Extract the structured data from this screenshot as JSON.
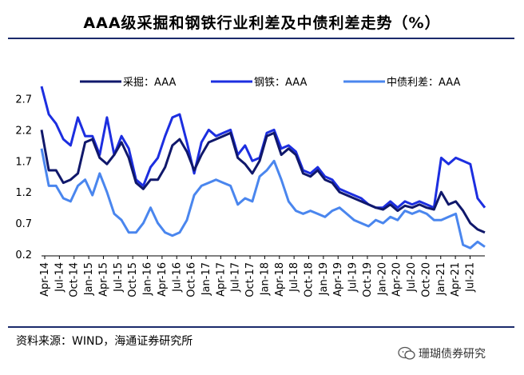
{
  "title": "AAA级采掘和钢铁行业利差及中债利差走势（%）",
  "source": "资料来源：WIND，海通证券研究所",
  "watermark": "珊瑚债券研究",
  "colors": {
    "mining": "#10186b",
    "steel": "#1c2ee0",
    "cbond": "#4a86ee",
    "rule": "#1b2a6b"
  },
  "chart_data": {
    "type": "line",
    "ylim": [
      0.2,
      2.9
    ],
    "yticks": [
      "2.7",
      "2.2",
      "1.7",
      "1.2",
      "0.7",
      "0.2"
    ],
    "ytick_values": [
      2.7,
      2.2,
      1.7,
      1.2,
      0.7,
      0.2
    ],
    "xticks": [
      "Apr-14",
      "Jul-14",
      "Oct-14",
      "Jan-15",
      "Apr-15",
      "Jul-15",
      "Oct-15",
      "Jan-16",
      "Apr-16",
      "Jul-16",
      "Oct-16",
      "Jan-17",
      "Apr-17",
      "Jul-17",
      "Oct-17",
      "Jan-18",
      "Apr-18",
      "Jul-18",
      "Oct-18",
      "Jan-19",
      "Apr-19",
      "Jul-19",
      "Oct-19",
      "Jan-20",
      "Apr-20",
      "Jul-20",
      "Oct-20",
      "Jan-21",
      "Apr-21",
      "Jul-21"
    ],
    "series": [
      {
        "name": "采掘：AAA",
        "key": "mining",
        "values": [
          2.2,
          1.55,
          1.55,
          1.35,
          1.4,
          1.5,
          2.0,
          2.05,
          1.75,
          1.65,
          1.8,
          2.0,
          1.75,
          1.35,
          1.25,
          1.4,
          1.4,
          1.6,
          1.95,
          2.05,
          1.85,
          1.55,
          1.8,
          2.0,
          2.05,
          2.1,
          2.15,
          1.75,
          1.65,
          1.5,
          1.7,
          2.1,
          2.15,
          1.8,
          1.9,
          1.8,
          1.5,
          1.45,
          1.55,
          1.4,
          1.35,
          1.2,
          1.15,
          1.1,
          1.05,
          1.0,
          0.95,
          0.92,
          1.0,
          0.9,
          0.98,
          0.95,
          1.0,
          0.95,
          0.92,
          1.2,
          1.0,
          1.05,
          0.9,
          0.7,
          0.6,
          0.55
        ]
      },
      {
        "name": "钢铁：AAA",
        "key": "steel",
        "values": [
          2.9,
          2.45,
          2.3,
          2.05,
          1.95,
          2.4,
          2.1,
          2.1,
          1.8,
          2.4,
          1.8,
          2.1,
          1.9,
          1.4,
          1.3,
          1.6,
          1.75,
          2.1,
          2.4,
          2.45,
          2.0,
          1.5,
          2.0,
          2.2,
          2.1,
          2.15,
          2.2,
          1.8,
          1.95,
          1.7,
          1.75,
          2.15,
          2.2,
          1.9,
          1.95,
          1.85,
          1.55,
          1.5,
          1.6,
          1.45,
          1.4,
          1.25,
          1.2,
          1.15,
          1.1,
          1.0,
          0.95,
          0.95,
          1.05,
          0.95,
          1.05,
          1.0,
          1.05,
          1.0,
          0.95,
          1.75,
          1.65,
          1.75,
          1.7,
          1.65,
          1.1,
          0.95
        ]
      },
      {
        "name": "中债利差：AAA",
        "key": "cbond",
        "values": [
          1.9,
          1.3,
          1.3,
          1.1,
          1.05,
          1.3,
          1.4,
          1.15,
          1.5,
          1.2,
          0.85,
          0.75,
          0.55,
          0.55,
          0.7,
          0.95,
          0.7,
          0.55,
          0.5,
          0.55,
          0.75,
          1.15,
          1.3,
          1.35,
          1.4,
          1.35,
          1.3,
          1.0,
          1.1,
          1.05,
          1.45,
          1.55,
          1.7,
          1.4,
          1.05,
          0.9,
          0.85,
          0.9,
          0.85,
          0.8,
          0.9,
          0.95,
          0.85,
          0.75,
          0.7,
          0.65,
          0.75,
          0.7,
          0.8,
          0.75,
          0.9,
          0.85,
          0.9,
          0.85,
          0.75,
          0.75,
          0.8,
          0.85,
          0.35,
          0.3,
          0.4,
          0.32
        ]
      }
    ]
  }
}
